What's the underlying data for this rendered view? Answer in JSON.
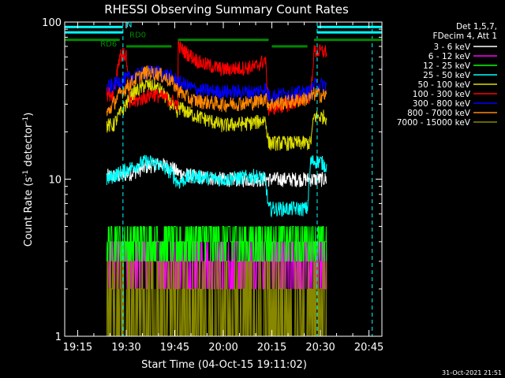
{
  "chart_data": {
    "type": "line",
    "title": "RHESSI Observing Summary Count Rates",
    "xlabel": "Start Time (04-Oct-15 19:11:02)",
    "ylabel_main": "Count Rate (s",
    "ylabel_sup": "-1",
    "ylabel_end": " detector",
    "ylabel_close": ")",
    "y_scale": "log",
    "ylim": [
      1,
      100
    ],
    "xlim": [
      "19:11",
      "20:49"
    ],
    "x_ticks": [
      "19:15",
      "19:30",
      "19:45",
      "20:00",
      "20:15",
      "20:30",
      "20:45"
    ],
    "y_ticks": [
      "1",
      "10",
      "100"
    ],
    "timestamp": "31-Oct-2021 21:51",
    "legend_header": [
      "Det 1,5,7,",
      "FDecim 4, Att 1"
    ],
    "legend_placement": "right",
    "series": [
      {
        "name": "3 - 6 keV",
        "color": "#ffffff",
        "points": [
          [
            "19:24",
            10.5
          ],
          [
            "19:28",
            10.5
          ],
          [
            "19:32",
            11
          ],
          [
            "19:36",
            12
          ],
          [
            "19:40",
            12.5
          ],
          [
            "19:44",
            12
          ],
          [
            "19:46",
            11
          ],
          [
            "19:50",
            10.5
          ],
          [
            "20:00",
            10
          ],
          [
            "20:10",
            10
          ],
          [
            "20:13",
            10
          ],
          [
            "20:16",
            10
          ],
          [
            "20:22",
            10
          ],
          [
            "20:27",
            10
          ],
          [
            "20:32",
            10
          ]
        ]
      },
      {
        "name": "6 - 12 keV",
        "color": "#ff00ff",
        "points": [
          [
            "19:24",
            3.5
          ],
          [
            "19:46",
            3.5
          ],
          [
            "20:15",
            3.5
          ],
          [
            "20:32",
            3.5
          ]
        ]
      },
      {
        "name": "12 - 25 keV",
        "color": "#00ff00",
        "points": [
          [
            "19:24",
            4.5
          ],
          [
            "19:46",
            4.5
          ],
          [
            "20:15",
            4.2
          ],
          [
            "20:32",
            4.5
          ]
        ]
      },
      {
        "name": "25 - 50 keV",
        "color": "#00ffff",
        "points": [
          [
            "19:24",
            10
          ],
          [
            "19:28",
            11
          ],
          [
            "19:32",
            12
          ],
          [
            "19:36",
            13
          ],
          [
            "19:40",
            12.5
          ],
          [
            "19:44",
            11
          ],
          [
            "19:46",
            9.5
          ],
          [
            "19:50",
            10.5
          ],
          [
            "20:00",
            10
          ],
          [
            "20:10",
            10.5
          ],
          [
            "20:13",
            10
          ],
          [
            "20:14",
            6.5
          ],
          [
            "20:22",
            6.5
          ],
          [
            "20:26",
            6.5
          ],
          [
            "20:27",
            13
          ],
          [
            "20:30",
            13
          ],
          [
            "20:32",
            12
          ]
        ]
      },
      {
        "name": "50 - 100 keV",
        "color": "#dddd00",
        "points": [
          [
            "19:24",
            22
          ],
          [
            "19:26",
            22
          ],
          [
            "19:28",
            26
          ],
          [
            "19:32",
            35
          ],
          [
            "19:36",
            40
          ],
          [
            "19:40",
            38
          ],
          [
            "19:44",
            30
          ],
          [
            "19:46",
            25
          ],
          [
            "19:46",
            29
          ],
          [
            "19:50",
            26
          ],
          [
            "20:00",
            22
          ],
          [
            "20:10",
            23
          ],
          [
            "20:13",
            24
          ],
          [
            "20:14",
            17
          ],
          [
            "20:27",
            17
          ],
          [
            "20:28",
            25
          ],
          [
            "20:32",
            25
          ]
        ]
      },
      {
        "name": "100 - 300 keV",
        "color": "#ff0000",
        "points": [
          [
            "19:24",
            35
          ],
          [
            "19:26",
            35
          ],
          [
            "19:28",
            62
          ],
          [
            "19:30",
            62
          ],
          [
            "19:31",
            30
          ],
          [
            "19:34",
            32
          ],
          [
            "19:38",
            35
          ],
          [
            "19:42",
            33
          ],
          [
            "19:46",
            30
          ],
          [
            "19:46",
            70
          ],
          [
            "19:49",
            63
          ],
          [
            "19:53",
            55
          ],
          [
            "20:00",
            50
          ],
          [
            "20:10",
            52
          ],
          [
            "20:13",
            58
          ],
          [
            "20:14",
            28
          ],
          [
            "20:20",
            30
          ],
          [
            "20:27",
            34
          ],
          [
            "20:28",
            65
          ],
          [
            "20:32",
            65
          ]
        ]
      },
      {
        "name": "300 - 800 keV",
        "color": "#0000ff",
        "points": [
          [
            "19:24",
            38
          ],
          [
            "19:28",
            42
          ],
          [
            "19:32",
            45
          ],
          [
            "19:36",
            48
          ],
          [
            "19:40",
            48
          ],
          [
            "19:44",
            45
          ],
          [
            "19:46",
            42
          ],
          [
            "19:48",
            40
          ],
          [
            "19:52",
            37
          ],
          [
            "20:00",
            36
          ],
          [
            "20:10",
            36
          ],
          [
            "20:13",
            38
          ],
          [
            "20:14",
            34
          ],
          [
            "20:20",
            35
          ],
          [
            "20:27",
            36
          ],
          [
            "20:28",
            40
          ],
          [
            "20:32",
            40
          ]
        ]
      },
      {
        "name": "800 - 7000 keV",
        "color": "#ff8800",
        "points": [
          [
            "19:24",
            26
          ],
          [
            "19:28",
            35
          ],
          [
            "19:32",
            42
          ],
          [
            "19:36",
            48
          ],
          [
            "19:40",
            47
          ],
          [
            "19:44",
            42
          ],
          [
            "19:46",
            37
          ],
          [
            "19:50",
            32
          ],
          [
            "20:00",
            30
          ],
          [
            "20:10",
            31
          ],
          [
            "20:13",
            33
          ],
          [
            "20:14",
            30
          ],
          [
            "20:20",
            31
          ],
          [
            "20:27",
            33
          ],
          [
            "20:28",
            35
          ],
          [
            "20:32",
            34
          ]
        ]
      },
      {
        "name": "7000 - 15000 keV",
        "color": "#888800",
        "points": [
          [
            "19:24",
            2.5
          ],
          [
            "19:46",
            2.5
          ],
          [
            "20:15",
            2.5
          ],
          [
            "20:32",
            2.5
          ]
        ]
      }
    ],
    "annotations": [
      {
        "label": "N",
        "color": "#00ffff",
        "time": "19:30",
        "value": 93
      },
      {
        "label": "RD0",
        "color": "#008800",
        "time": "19:31",
        "value": 80
      },
      {
        "label": "RD6",
        "color": "#008800",
        "time": "19:22",
        "value": 70
      }
    ],
    "state_bars": [
      {
        "color": "#00ffff",
        "value": 93,
        "spans": [
          [
            "19:11",
            "19:29"
          ],
          [
            "20:29",
            "20:49"
          ]
        ]
      },
      {
        "color": "#00ffff",
        "value": 86,
        "spans": [
          [
            "19:11",
            "19:29"
          ],
          [
            "20:29",
            "20:49"
          ]
        ]
      },
      {
        "color": "#008800",
        "value": 77,
        "spans": [
          [
            "19:11",
            "19:28"
          ],
          [
            "19:46",
            "20:14"
          ],
          [
            "20:28",
            "20:49"
          ]
        ]
      },
      {
        "color": "#008800",
        "value": 70,
        "spans": [
          [
            "19:30",
            "19:44"
          ],
          [
            "20:15",
            "20:26"
          ]
        ]
      }
    ],
    "vlines": [
      {
        "color": "#00ffff",
        "time": "19:11"
      },
      {
        "color": "#00ffff",
        "time": "19:29"
      },
      {
        "color": "#00ffff",
        "time": "20:29"
      },
      {
        "color": "#00ffff",
        "time": "20:46"
      }
    ]
  }
}
